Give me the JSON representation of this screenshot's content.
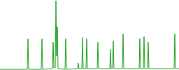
{
  "chart_data": {
    "type": "line",
    "x": [
      0,
      39,
      40,
      41,
      59,
      60,
      61,
      75,
      76,
      77,
      79,
      80,
      81,
      82,
      83,
      93,
      94,
      95,
      111,
      112,
      113,
      117,
      118,
      119,
      123,
      124,
      125,
      139,
      140,
      141,
      157,
      158,
      159,
      161,
      162,
      163,
      175,
      176,
      177,
      199,
      200,
      201,
      205,
      206,
      207,
      211,
      212,
      213,
      249,
      250,
      251,
      256
    ],
    "values": [
      1,
      1,
      45,
      1,
      1,
      45,
      1,
      2,
      40,
      3,
      3,
      100,
      20,
      62,
      2,
      1,
      45,
      1,
      2,
      10,
      2,
      2,
      47,
      2,
      2,
      45,
      2,
      2,
      40,
      2,
      2,
      30,
      2,
      2,
      42,
      2,
      2,
      52,
      2,
      2,
      45,
      2,
      2,
      48,
      2,
      2,
      40,
      2,
      2,
      52,
      2,
      2
    ],
    "color": "#1a9c1a",
    "xlim": [
      0,
      256
    ],
    "ylim": [
      0,
      100
    ],
    "tick_labels": false,
    "grid": false
  }
}
